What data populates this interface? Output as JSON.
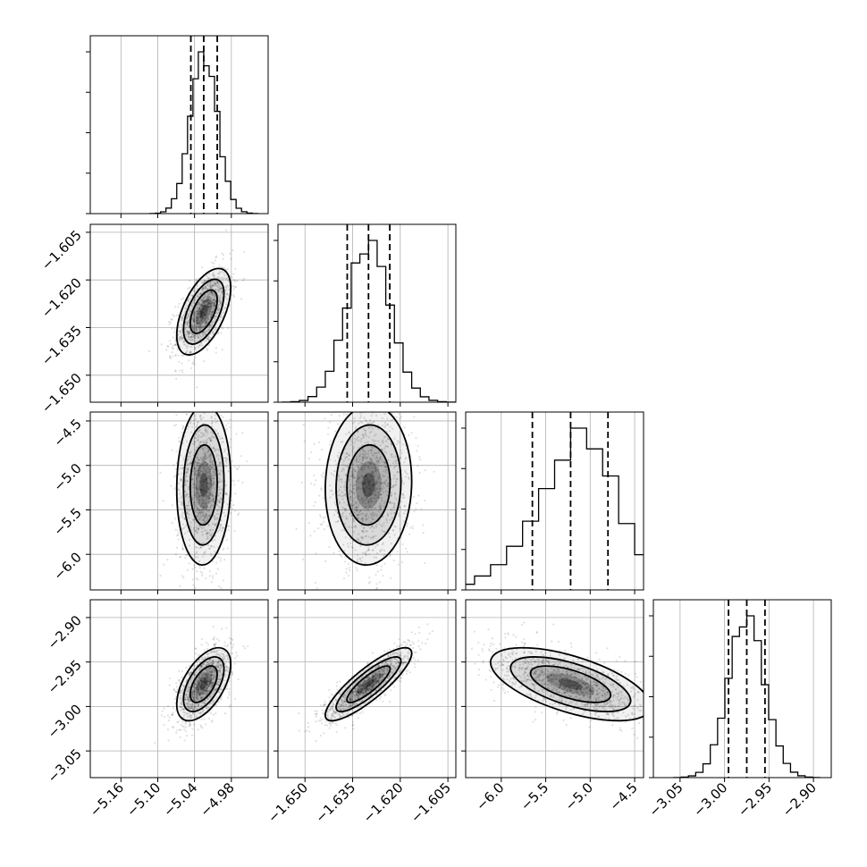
{
  "chart_data": {
    "type": "corner",
    "title": "",
    "parameters": [
      {
        "ticks": [
          -5.16,
          -5.1,
          -5.04,
          -4.98
        ],
        "range": [
          -5.21,
          -4.92
        ],
        "mean": -5.025,
        "sigma": 0.022,
        "q16": -5.046,
        "q50": -5.025,
        "q84": -5.003
      },
      {
        "ticks": [
          -1.65,
          -1.635,
          -1.62,
          -1.605
        ],
        "range": [
          -1.6585,
          -1.6025
        ],
        "mean": -1.63,
        "sigma": 0.0068,
        "q16": -1.6367,
        "q50": -1.63,
        "q84": -1.6233
      },
      {
        "ticks": [
          -6.0,
          -5.5,
          -5.0,
          -4.5
        ],
        "range": [
          -6.4,
          -4.4
        ],
        "mean": -5.22,
        "sigma": 0.45,
        "q16": -5.65,
        "q50": -5.22,
        "q84": -4.8
      },
      {
        "ticks": [
          -3.05,
          -3.0,
          -2.95,
          -2.9
        ],
        "range": [
          -3.08,
          -2.88
        ],
        "mean": -2.975,
        "sigma": 0.0205,
        "q16": -2.9955,
        "q50": -2.975,
        "q84": -2.9545
      }
    ],
    "tick_labels": {
      "x": [
        [
          "−5.16",
          "−5.10",
          "−5.04",
          "−4.98"
        ],
        [
          "−1.650",
          "−1.635",
          "−1.620",
          "−1.605"
        ],
        [
          "−6.0",
          "−5.5",
          "−5.0",
          "−4.5"
        ],
        [
          "−3.05",
          "−3.00",
          "−2.95",
          "−2.90"
        ]
      ],
      "y": [
        null,
        [
          "−1.605",
          "−1.620",
          "−1.635",
          "−1.650"
        ],
        [
          "−4.5",
          "−5.0",
          "−5.5",
          "−6.0"
        ],
        [
          "−2.90",
          "−2.95",
          "−3.00",
          "−3.05"
        ]
      ]
    },
    "correlations": [
      {
        "pair": [
          1,
          0
        ],
        "rho": 0.55
      },
      {
        "pair": [
          2,
          0
        ],
        "rho": 0.05
      },
      {
        "pair": [
          2,
          1
        ],
        "rho": 0.05
      },
      {
        "pair": [
          3,
          0
        ],
        "rho": 0.55
      },
      {
        "pair": [
          3,
          1
        ],
        "rho": 0.85
      },
      {
        "pair": [
          3,
          2
        ],
        "rho": -0.6
      }
    ],
    "grid": true,
    "quantile_lines": "dashed",
    "contour_levels_sigma": [
      1.0,
      1.5,
      2.0
    ],
    "colors": {
      "points": "#000000",
      "density": "#000000",
      "lines": "#000000"
    }
  }
}
